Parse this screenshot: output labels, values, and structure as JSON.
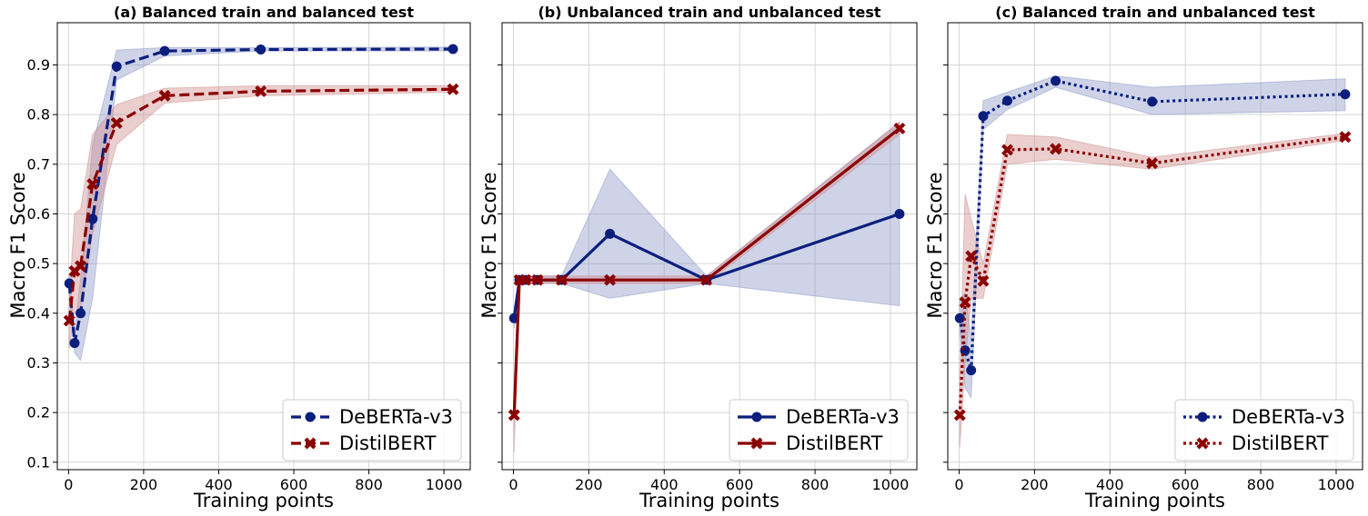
{
  "figure": {
    "xlabel": "Training points",
    "ylabel": "Macro F1 Score",
    "yticks": [
      "0.1",
      "0.2",
      "0.3",
      "0.4",
      "0.5",
      "0.6",
      "0.7",
      "0.8",
      "0.9"
    ],
    "xticks": [
      "0",
      "200",
      "400",
      "600",
      "800",
      "1000"
    ],
    "colors": {
      "deberta": "#0a1f7d",
      "distilbert": "#8b0000",
      "deberta_band": "#8c97c7",
      "distilbert_band": "#cf8c8c",
      "grid": "#d6d6d6"
    }
  },
  "chart_data": [
    {
      "type": "line",
      "title": "(a) Balanced train and balanced test",
      "xlabel": "Training points",
      "ylabel": "Macro F1 Score",
      "xlim": [
        -30,
        1070
      ],
      "ylim": [
        0.085,
        0.985
      ],
      "grid": true,
      "legend_position": "bottom-right",
      "line_style": "dashed",
      "x": [
        2,
        16,
        32,
        64,
        128,
        256,
        512,
        1024
      ],
      "series": [
        {
          "name": "DeBERTa-v3",
          "marker": "circle",
          "values": [
            0.46,
            0.34,
            0.4,
            0.59,
            0.897,
            0.928,
            0.931,
            0.932
          ],
          "lower": [
            0.44,
            0.32,
            0.305,
            0.43,
            0.87,
            0.918,
            0.928,
            0.928
          ],
          "upper": [
            0.48,
            0.36,
            0.47,
            0.74,
            0.93,
            0.935,
            0.935,
            0.936
          ]
        },
        {
          "name": "DistilBERT",
          "marker": "x",
          "values": [
            0.385,
            0.485,
            0.495,
            0.66,
            0.783,
            0.838,
            0.847,
            0.851
          ],
          "lower": [
            0.33,
            0.4,
            0.41,
            0.56,
            0.74,
            0.823,
            0.838,
            0.845
          ],
          "upper": [
            0.43,
            0.6,
            0.61,
            0.76,
            0.82,
            0.853,
            0.858,
            0.858
          ]
        }
      ]
    },
    {
      "type": "line",
      "title": "(b) Unbalanced train and unbalanced test",
      "xlabel": "Training points",
      "ylabel": "Macro F1 Score",
      "xlim": [
        -30,
        1070
      ],
      "ylim": [
        0.085,
        0.985
      ],
      "grid": true,
      "legend_position": "bottom-right",
      "line_style": "solid",
      "x": [
        2,
        16,
        32,
        64,
        128,
        256,
        512,
        1024
      ],
      "series": [
        {
          "name": "DeBERTa-v3",
          "marker": "circle",
          "values": [
            0.39,
            0.467,
            0.467,
            0.467,
            0.467,
            0.56,
            0.467,
            0.6
          ],
          "lower": [
            0.37,
            0.46,
            0.46,
            0.46,
            0.46,
            0.43,
            0.46,
            0.415
          ],
          "upper": [
            0.41,
            0.475,
            0.475,
            0.475,
            0.475,
            0.69,
            0.475,
            0.785
          ]
        },
        {
          "name": "DistilBERT",
          "marker": "x",
          "values": [
            0.195,
            0.467,
            0.467,
            0.467,
            0.467,
            0.467,
            0.467,
            0.772
          ],
          "lower": [
            0.12,
            0.46,
            0.46,
            0.46,
            0.46,
            0.46,
            0.46,
            0.76
          ],
          "upper": [
            0.27,
            0.475,
            0.475,
            0.475,
            0.475,
            0.475,
            0.475,
            0.785
          ]
        }
      ]
    },
    {
      "type": "line",
      "title": "(c) Balanced train and unbalanced test",
      "xlabel": "Training points",
      "ylabel": "Macro F1 Score",
      "xlim": [
        -30,
        1070
      ],
      "ylim": [
        0.085,
        0.985
      ],
      "grid": true,
      "legend_position": "bottom-right",
      "line_style": "dotted",
      "x": [
        2,
        16,
        32,
        64,
        128,
        256,
        512,
        1024
      ],
      "series": [
        {
          "name": "DeBERTa-v3",
          "marker": "circle",
          "values": [
            0.39,
            0.325,
            0.285,
            0.797,
            0.828,
            0.868,
            0.826,
            0.841
          ],
          "lower": [
            0.36,
            0.25,
            0.23,
            0.77,
            0.81,
            0.855,
            0.8,
            0.808
          ],
          "upper": [
            0.43,
            0.44,
            0.35,
            0.828,
            0.845,
            0.878,
            0.855,
            0.872
          ]
        },
        {
          "name": "DistilBERT",
          "marker": "x",
          "values": [
            0.195,
            0.422,
            0.515,
            0.465,
            0.729,
            0.731,
            0.702,
            0.755
          ],
          "lower": [
            0.13,
            0.3,
            0.43,
            0.43,
            0.7,
            0.71,
            0.69,
            0.748
          ],
          "upper": [
            0.27,
            0.64,
            0.59,
            0.5,
            0.76,
            0.755,
            0.714,
            0.762
          ]
        }
      ]
    }
  ]
}
